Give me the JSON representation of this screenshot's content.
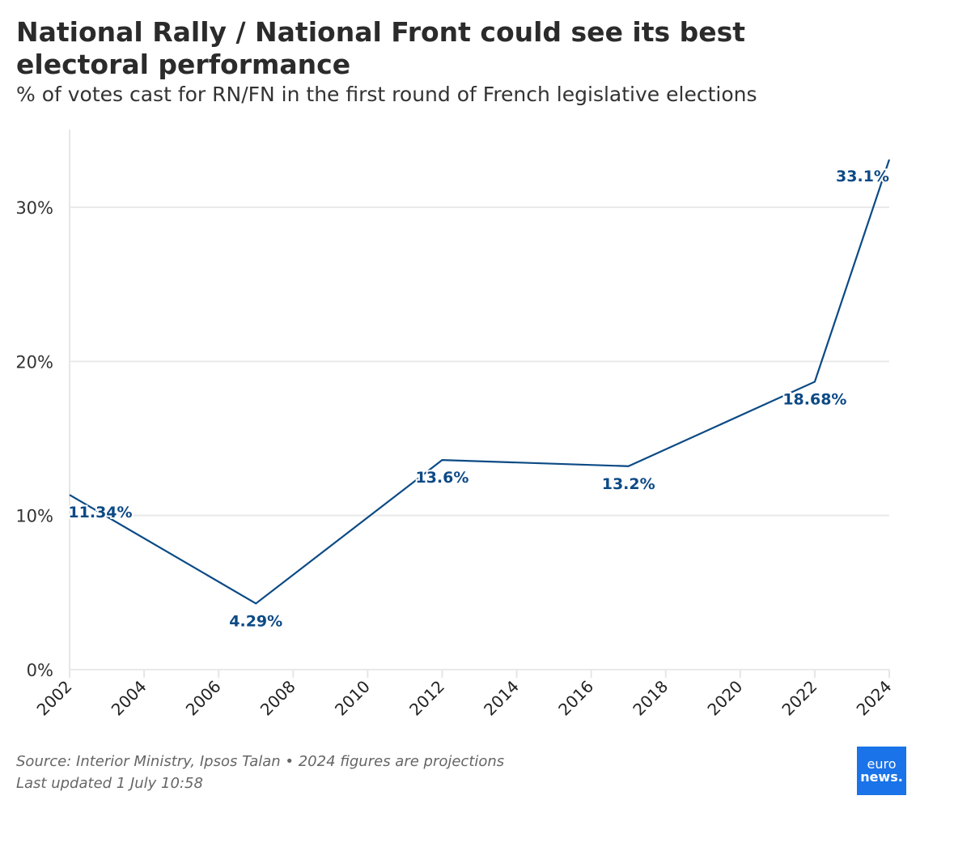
{
  "title": "National Rally / National Front could see its best electoral performance",
  "subtitle": "% of votes cast for RN/FN in the first round of French legislative elections",
  "chart_data": {
    "type": "line",
    "x": [
      2002,
      2007,
      2012,
      2017,
      2022,
      2024
    ],
    "series": [
      {
        "name": "RN/FN",
        "values": [
          11.34,
          4.29,
          13.6,
          13.2,
          18.68,
          33.1
        ],
        "color": "#0b4a85"
      }
    ],
    "data_labels": [
      "11.34%",
      "4.29%",
      "13.6%",
      "13.2%",
      "18.68%",
      "33.1%"
    ],
    "xlim": [
      2002,
      2024
    ],
    "ylim": [
      0,
      35
    ],
    "x_ticks": [
      "2002",
      "2004",
      "2006",
      "2008",
      "2010",
      "2012",
      "2014",
      "2016",
      "2018",
      "2020",
      "2022",
      "2024"
    ],
    "y_ticks": [
      {
        "value": 0,
        "label": "0%"
      },
      {
        "value": 10,
        "label": "10%"
      },
      {
        "value": 20,
        "label": "20%"
      },
      {
        "value": 30,
        "label": "30%"
      }
    ],
    "grid": true,
    "xlabel": "",
    "ylabel": ""
  },
  "footer": {
    "source": "Source: Interior Ministry, Ipsos Talan • 2024 figures are projections",
    "updated": "Last updated 1 July 10:58"
  },
  "logo": {
    "line1": "euro",
    "line2": "news.",
    "color": "#1a73e8"
  }
}
